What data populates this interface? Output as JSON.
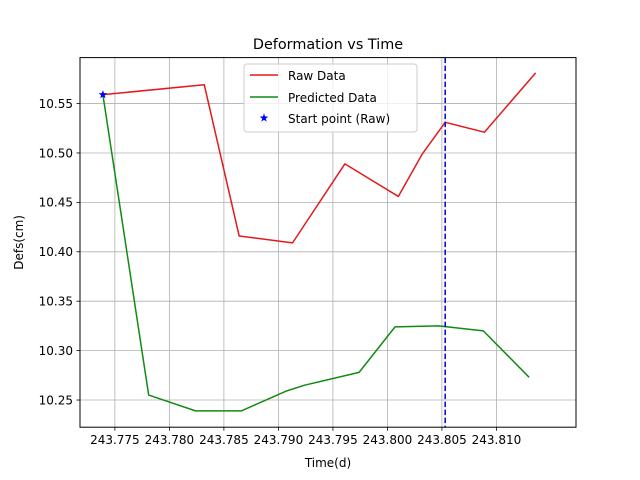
{
  "chart_data": {
    "type": "line",
    "title": "Deformation vs Time",
    "xlabel": "Time(d)",
    "ylabel": "Defs(cm)",
    "xlim": [
      243.7718,
      243.8173
    ],
    "ylim": [
      10.2225,
      10.5965
    ],
    "xticks": [
      243.775,
      243.78,
      243.785,
      243.79,
      243.795,
      243.8,
      243.805,
      243.81
    ],
    "xtick_labels": [
      "243.775",
      "243.780",
      "243.785",
      "243.790",
      "243.795",
      "243.800",
      "243.805",
      "243.810"
    ],
    "yticks": [
      10.25,
      10.3,
      10.35,
      10.4,
      10.45,
      10.5,
      10.55
    ],
    "ytick_labels": [
      "10.25",
      "10.30",
      "10.35",
      "10.40",
      "10.45",
      "10.50",
      "10.55"
    ],
    "grid": true,
    "legend_position": "top-center",
    "series": [
      {
        "name": "Raw Data",
        "color": "#e31a1c",
        "style": "solid line",
        "x": [
          243.7739,
          243.7832,
          243.7864,
          243.7913,
          243.7961,
          243.801,
          243.8032,
          243.8053,
          243.8089,
          243.8136
        ],
        "y": [
          10.559,
          10.569,
          10.416,
          10.409,
          10.489,
          10.456,
          10.499,
          10.531,
          10.521,
          10.581
        ]
      },
      {
        "name": "Predicted Data",
        "color": "#138a13",
        "style": "solid line",
        "x": [
          243.7739,
          243.7781,
          243.7824,
          243.7866,
          243.7907,
          243.7924,
          243.7974,
          243.8007,
          243.8047,
          243.8088,
          243.813
        ],
        "y": [
          10.559,
          10.255,
          10.239,
          10.239,
          10.259,
          10.265,
          10.278,
          10.324,
          10.325,
          10.32,
          10.273
        ]
      },
      {
        "name": "Start point (Raw)",
        "color": "#0000ff",
        "style": "star marker",
        "x": [
          243.7739
        ],
        "y": [
          10.559
        ]
      }
    ],
    "vline": {
      "x": 243.8053,
      "color": "#0000cc",
      "style": "dashed"
    }
  }
}
